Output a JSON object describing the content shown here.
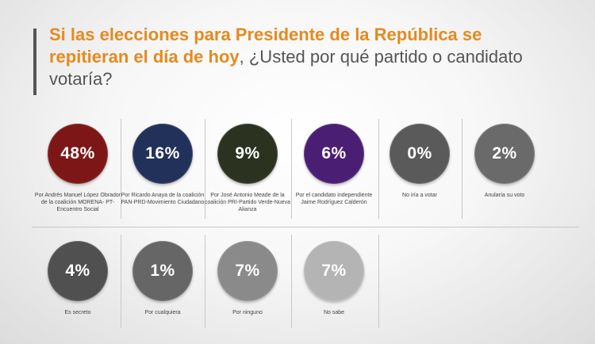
{
  "title": {
    "highlight": "Si las elecciones para Presidente de la República se repitieran el día de hoy",
    "rest": ", ¿Usted por qué partido o candidato votaría?"
  },
  "chart_data": {
    "type": "bubble-grid",
    "unit": "%",
    "items": [
      {
        "value": 48,
        "label": "48%",
        "caption": "Por Andrés Manuel López Obrador de la coalición MORENA- PT- Encuentro Social",
        "color": "#7d1717"
      },
      {
        "value": 16,
        "label": "16%",
        "caption": "Por Ricardo Anaya de la coalición PAN-PRD-Movimiento Ciudadano",
        "color": "#22315a"
      },
      {
        "value": 9,
        "label": "9%",
        "caption": "Por José Antonio Meade de la coalición PRI-Partido Verde-Nueva Alianza",
        "color": "#2b3320"
      },
      {
        "value": 6,
        "label": "6%",
        "caption": "Por el candidato independiente Jaime Rodríguez Calderón",
        "color": "#4a1f73"
      },
      {
        "value": 0,
        "label": "0%",
        "caption": "No iría a votar",
        "color": "#5a5a5a"
      },
      {
        "value": 2,
        "label": "2%",
        "caption": "Anularía su voto",
        "color": "#6a6a6a"
      },
      {
        "value": 4,
        "label": "4%",
        "caption": "Es secreto",
        "color": "#505050"
      },
      {
        "value": 1,
        "label": "1%",
        "caption": "Por cualquiera",
        "color": "#666666"
      },
      {
        "value": 7,
        "label": "7%",
        "caption": "Por ninguno",
        "color": "#8a8a8a"
      },
      {
        "value": 7,
        "label": "7%",
        "caption": "No sabe",
        "color": "#b4b4b4"
      }
    ]
  }
}
